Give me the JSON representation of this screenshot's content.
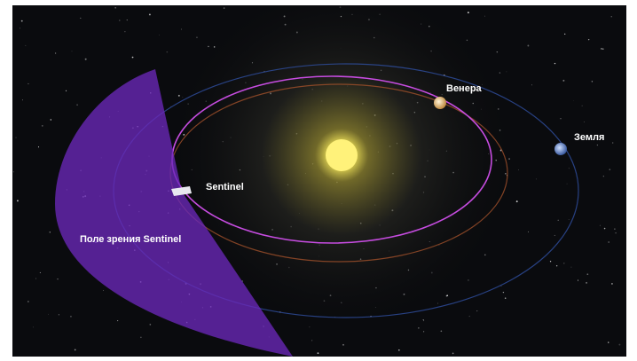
{
  "labels": {
    "venus": "Венера",
    "earth": "Земля",
    "sentinel": "Sentinel",
    "field_of_view": "Поле зрения Sentinel"
  }
}
